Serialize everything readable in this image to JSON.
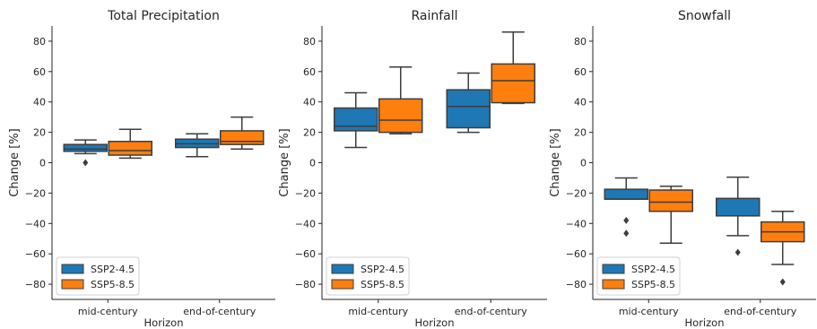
{
  "colors": {
    "ssp245": "#1f77b4",
    "ssp585": "#ff7f0e",
    "line": "#3d3d3d",
    "outlier": "#3d3d3d",
    "background": "#ffffff"
  },
  "chart_data": [
    {
      "type": "box",
      "title": "Total Precipitation",
      "xlabel": "Horizon",
      "ylabel": "Change [%]",
      "ylim": [
        -90,
        90
      ],
      "yticks": [
        -80,
        -60,
        -40,
        -20,
        0,
        20,
        40,
        60,
        80
      ],
      "categories": [
        "mid-century",
        "end-of-century"
      ],
      "legend": {
        "position": "lower-left",
        "entries": [
          "SSP2-4.5",
          "SSP5-8.5"
        ]
      },
      "series": [
        {
          "name": "SSP2-4.5",
          "boxes": [
            {
              "whislo": 6,
              "q1": 7.5,
              "med": 9,
              "q3": 12,
              "whishi": 15,
              "fliers": [
                0
              ]
            },
            {
              "whislo": 4,
              "q1": 10,
              "med": 12.5,
              "q3": 15.5,
              "whishi": 19,
              "fliers": []
            }
          ]
        },
        {
          "name": "SSP5-8.5",
          "boxes": [
            {
              "whislo": 3,
              "q1": 5,
              "med": 8,
              "q3": 14,
              "whishi": 22,
              "fliers": []
            },
            {
              "whislo": 9,
              "q1": 12,
              "med": 14,
              "q3": 21,
              "whishi": 30,
              "fliers": []
            }
          ]
        }
      ]
    },
    {
      "type": "box",
      "title": "Rainfall",
      "xlabel": "Horizon",
      "ylabel": "Change [%]",
      "ylim": [
        -90,
        90
      ],
      "yticks": [
        -80,
        -60,
        -40,
        -20,
        0,
        20,
        40,
        60,
        80
      ],
      "categories": [
        "mid-century",
        "end-of-century"
      ],
      "legend": {
        "position": "lower-left",
        "entries": [
          "SSP2-4.5",
          "SSP5-8.5"
        ]
      },
      "series": [
        {
          "name": "SSP2-4.5",
          "boxes": [
            {
              "whislo": 10,
              "q1": 21,
              "med": 24,
              "q3": 36,
              "whishi": 46,
              "fliers": []
            },
            {
              "whislo": 20,
              "q1": 23,
              "med": 37,
              "q3": 48,
              "whishi": 59,
              "fliers": []
            }
          ]
        },
        {
          "name": "SSP5-8.5",
          "boxes": [
            {
              "whislo": 19,
              "q1": 20,
              "med": 28,
              "q3": 42,
              "whishi": 63,
              "fliers": []
            },
            {
              "whislo": 39,
              "q1": 39.5,
              "med": 54,
              "q3": 65,
              "whishi": 86,
              "fliers": []
            }
          ]
        }
      ]
    },
    {
      "type": "box",
      "title": "Snowfall",
      "xlabel": "Horizon",
      "ylabel": "Change [%]",
      "ylim": [
        -90,
        90
      ],
      "yticks": [
        -80,
        -60,
        -40,
        -20,
        0,
        20,
        40,
        60,
        80
      ],
      "categories": [
        "mid-century",
        "end-of-century"
      ],
      "legend": {
        "position": "lower-left",
        "entries": [
          "SSP2-4.5",
          "SSP5-8.5"
        ]
      },
      "series": [
        {
          "name": "SSP2-4.5",
          "boxes": [
            {
              "whislo": -24,
              "q1": -24,
              "med": -24,
              "q3": -17.5,
              "whishi": -10,
              "fliers": [
                -38,
                -46.5
              ]
            },
            {
              "whislo": -48,
              "q1": -35,
              "med": -35,
              "q3": -23.5,
              "whishi": -9.5,
              "fliers": [
                -59
              ]
            }
          ]
        },
        {
          "name": "SSP5-8.5",
          "boxes": [
            {
              "whislo": -53,
              "q1": -32,
              "med": -26,
              "q3": -18,
              "whishi": -15.5,
              "fliers": []
            },
            {
              "whislo": -67,
              "q1": -52,
              "med": -45.5,
              "q3": -39,
              "whishi": -32,
              "fliers": [
                -78.5
              ]
            }
          ]
        }
      ]
    }
  ]
}
